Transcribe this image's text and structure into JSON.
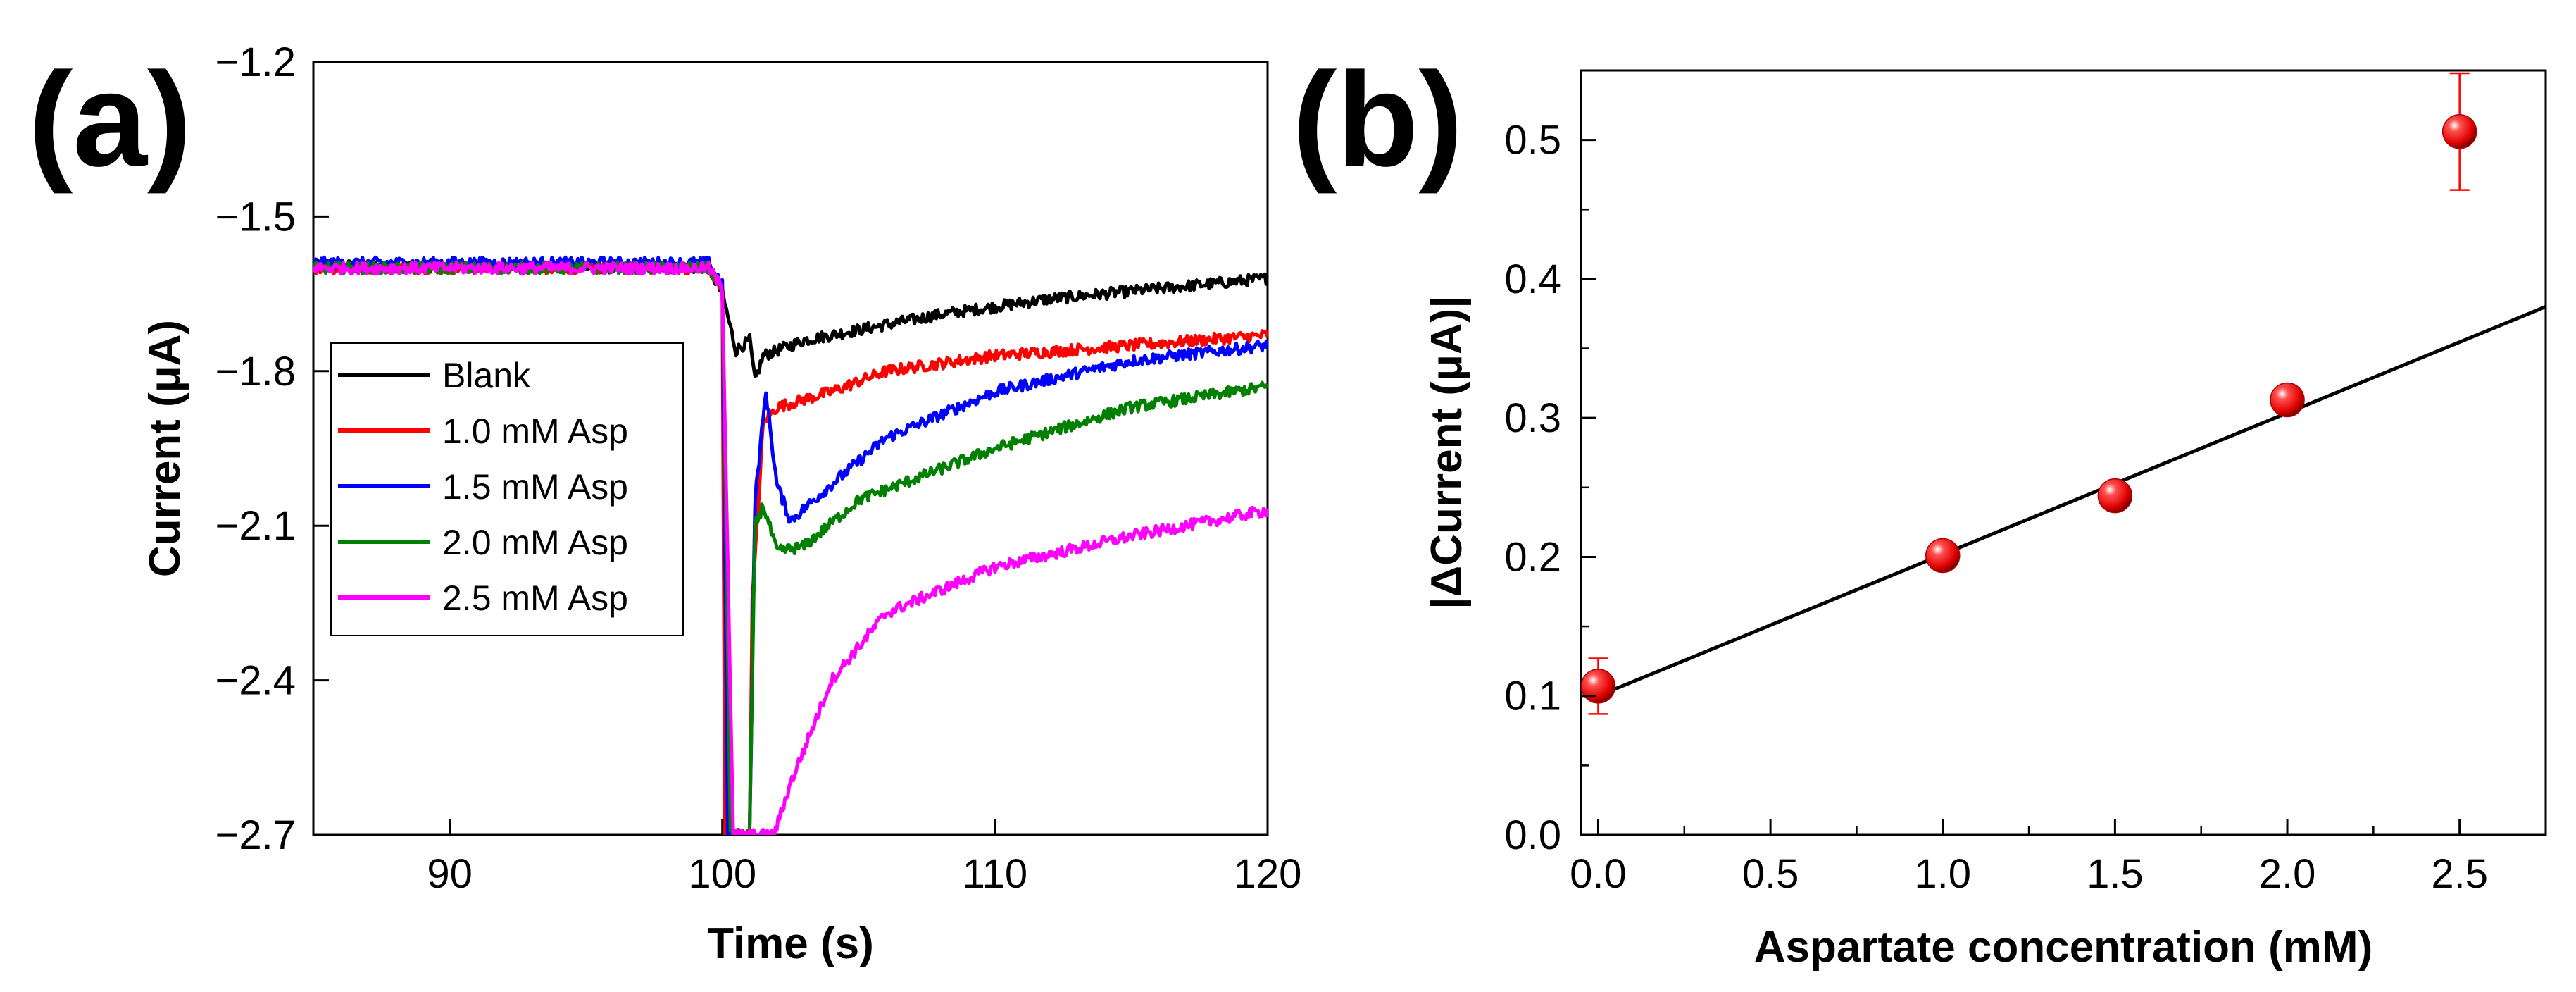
{
  "chart_data": [
    {
      "type": "line",
      "panel_label": "(a)",
      "title": "",
      "xlabel": "Time (s)",
      "ylabel": "Current (μA)",
      "xlim": [
        85,
        120
      ],
      "ylim": [
        -2.7,
        -1.2
      ],
      "xticks": [
        90,
        100,
        110,
        120
      ],
      "yticks": [
        -1.2,
        -1.5,
        -1.8,
        -2.1,
        -2.4,
        -2.7
      ],
      "xtick_labels": [
        "90",
        "100",
        "110",
        "120"
      ],
      "ytick_labels": [
        "−1.2",
        "−1.5",
        "−1.8",
        "−2.1",
        "−2.4",
        "−2.7"
      ],
      "grid": false,
      "legend_position": "center-left",
      "series": [
        {
          "name": "Blank",
          "color": "#000000",
          "points": [
            [
              85,
              -1.595
            ],
            [
              99.5,
              -1.6
            ],
            [
              100,
              -1.65
            ],
            [
              100.5,
              -1.76
            ],
            [
              101,
              -1.74
            ],
            [
              101.2,
              -1.82
            ],
            [
              101.5,
              -1.77
            ],
            [
              102,
              -1.76
            ],
            [
              103,
              -1.74
            ],
            [
              105,
              -1.72
            ],
            [
              108,
              -1.69
            ],
            [
              112,
              -1.66
            ],
            [
              116,
              -1.64
            ],
            [
              120,
              -1.62
            ]
          ]
        },
        {
          "name": "1.0 mM Asp",
          "color": "#ff0000",
          "points": [
            [
              85,
              -1.6
            ],
            [
              99.5,
              -1.6
            ],
            [
              100,
              -1.64
            ],
            [
              100.1,
              -2.7
            ],
            [
              101,
              -2.7
            ],
            [
              101.1,
              -2.25
            ],
            [
              101.5,
              -1.9
            ],
            [
              102,
              -1.87
            ],
            [
              104,
              -1.84
            ],
            [
              106,
              -1.8
            ],
            [
              110,
              -1.77
            ],
            [
              115,
              -1.75
            ],
            [
              120,
              -1.73
            ]
          ]
        },
        {
          "name": "1.5 mM Asp",
          "color": "#0000ff",
          "points": [
            [
              85,
              -1.59
            ],
            [
              99.5,
              -1.59
            ],
            [
              100,
              -1.63
            ],
            [
              100.2,
              -2.7
            ],
            [
              101,
              -2.7
            ],
            [
              101.2,
              -2.05
            ],
            [
              101.6,
              -1.84
            ],
            [
              102,
              -2.02
            ],
            [
              102.5,
              -2.09
            ],
            [
              104,
              -2.02
            ],
            [
              106,
              -1.93
            ],
            [
              110,
              -1.84
            ],
            [
              115,
              -1.78
            ],
            [
              120,
              -1.75
            ]
          ]
        },
        {
          "name": "2.0 mM Asp",
          "color": "#008000",
          "points": [
            [
              85,
              -1.6
            ],
            [
              99.5,
              -1.6
            ],
            [
              100,
              -1.64
            ],
            [
              100.3,
              -2.7
            ],
            [
              101,
              -2.7
            ],
            [
              101.2,
              -2.1
            ],
            [
              101.5,
              -2.06
            ],
            [
              102,
              -2.15
            ],
            [
              103,
              -2.14
            ],
            [
              105,
              -2.05
            ],
            [
              110,
              -1.95
            ],
            [
              115,
              -1.87
            ],
            [
              120,
              -1.83
            ]
          ]
        },
        {
          "name": "2.5 mM Asp",
          "color": "#ff00ff",
          "points": [
            [
              85,
              -1.6
            ],
            [
              99.5,
              -1.6
            ],
            [
              100,
              -1.64
            ],
            [
              100.4,
              -2.7
            ],
            [
              101.9,
              -2.7
            ],
            [
              102.5,
              -2.6
            ],
            [
              104,
              -2.4
            ],
            [
              106,
              -2.27
            ],
            [
              110,
              -2.18
            ],
            [
              115,
              -2.12
            ],
            [
              120,
              -2.07
            ]
          ]
        }
      ]
    },
    {
      "type": "scatter",
      "panel_label": "(b)",
      "title": "",
      "xlabel": "Aspartate concentration (mM)",
      "ylabel": "|ΔCurrent (μA)|",
      "xlim": [
        -0.05,
        2.75
      ],
      "ylim": [
        0.0,
        0.55
      ],
      "xticks": [
        0.0,
        0.5,
        1.0,
        1.5,
        2.0,
        2.5
      ],
      "yticks": [
        0.0,
        0.1,
        0.2,
        0.3,
        0.4,
        0.5
      ],
      "xtick_labels": [
        "0.0",
        "0.5",
        "1.0",
        "1.5",
        "2.0",
        "2.5"
      ],
      "ytick_labels": [
        "0.0",
        "0.1",
        "0.2",
        "0.3",
        "0.4",
        "0.5"
      ],
      "grid": false,
      "marker_color": "#ff0000",
      "fit_color": "#000000",
      "points": [
        {
          "x": 0.0,
          "y": 0.107,
          "err": 0.02
        },
        {
          "x": 1.0,
          "y": 0.201,
          "err": 0.008
        },
        {
          "x": 1.5,
          "y": 0.244,
          "err": 0.008
        },
        {
          "x": 2.0,
          "y": 0.313,
          "err": 0.008
        },
        {
          "x": 2.5,
          "y": 0.506,
          "err": 0.042
        }
      ],
      "fit_line": {
        "x": [
          0.0,
          2.75
        ],
        "y": [
          0.1,
          0.38
        ]
      }
    }
  ]
}
